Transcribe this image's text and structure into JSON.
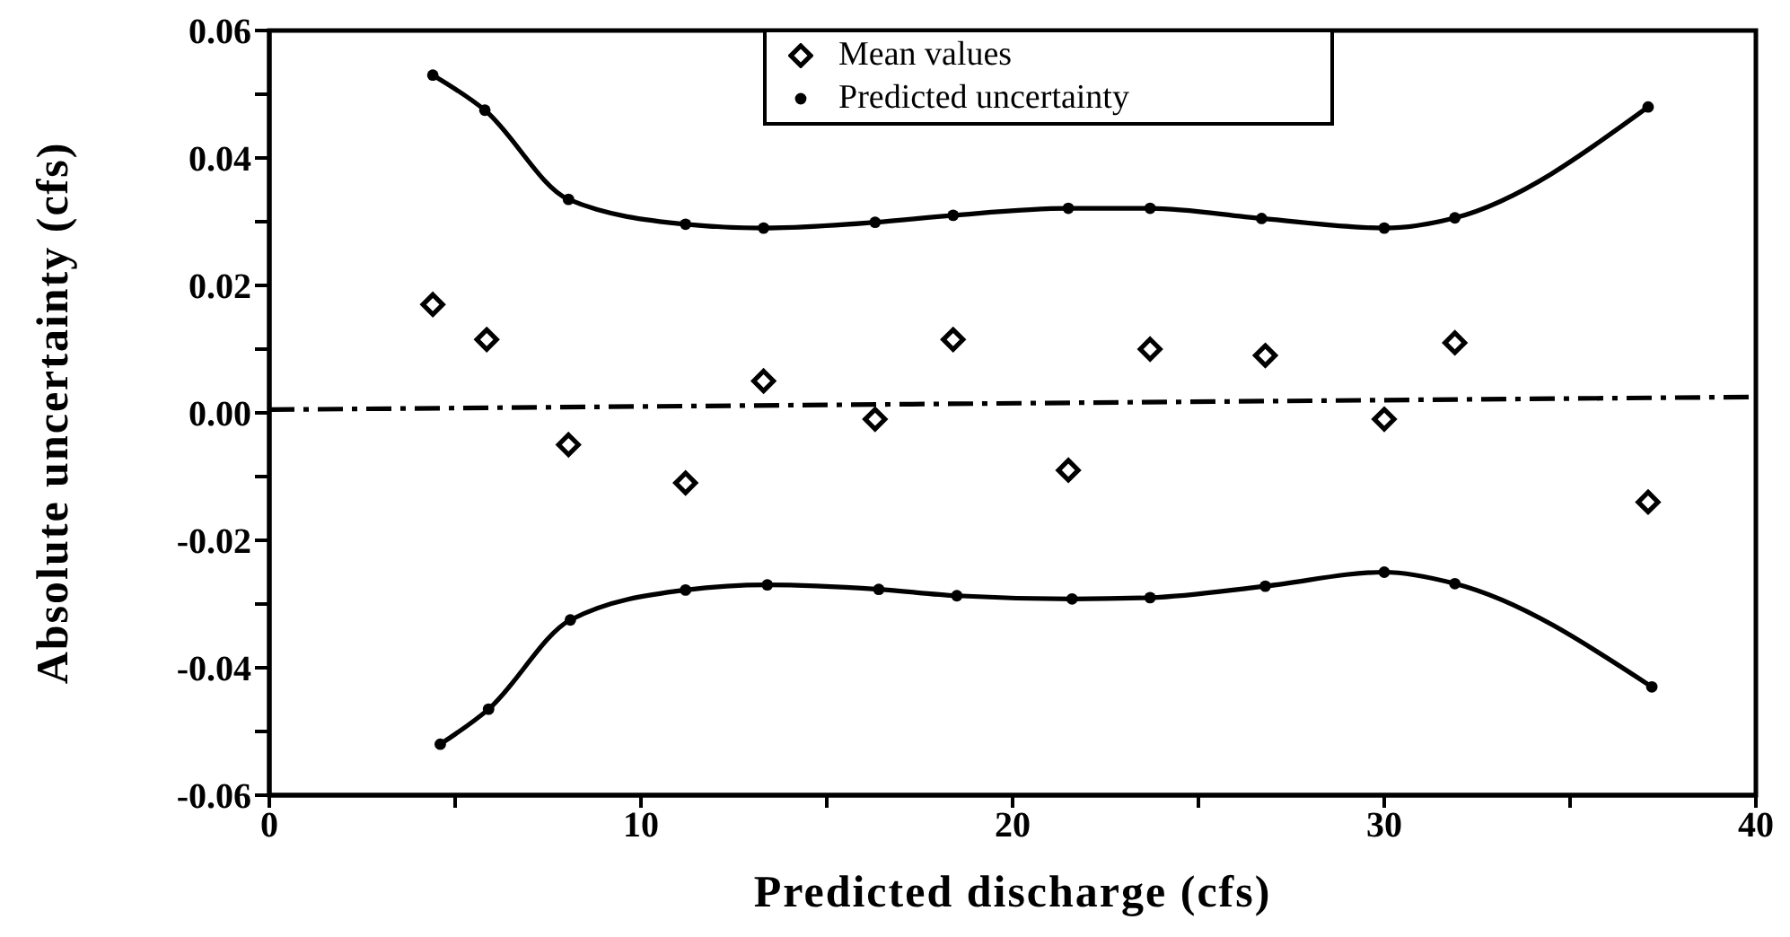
{
  "chart_data": {
    "type": "scatter",
    "xlabel": "Predicted discharge  (cfs)",
    "ylabel": "Absolute  uncertainty  (cfs)",
    "xlim": [
      0,
      40
    ],
    "xticks": [
      0,
      {
        "value": 5,
        "label": null
      },
      10,
      {
        "value": 15,
        "label": null
      },
      20,
      {
        "value": 25,
        "label": null
      },
      30,
      {
        "value": 35,
        "label": null
      },
      40
    ],
    "ylim": [
      -0.06,
      0.06
    ],
    "yticks": [
      -0.06,
      {
        "value": -0.05,
        "label": null
      },
      -0.04,
      {
        "value": -0.03,
        "label": null
      },
      -0.02,
      {
        "value": -0.01,
        "label": null
      },
      "0.00",
      {
        "value": 0.01,
        "label": null
      },
      0.02,
      {
        "value": 0.03,
        "label": null
      },
      0.04,
      {
        "value": 0.05,
        "label": null
      },
      0.06
    ],
    "legend": "top",
    "series": [
      {
        "name": "Mean values",
        "marker": "diamond",
        "color": "#000000",
        "x": [
          4.4,
          5.85,
          8.05,
          11.2,
          13.3,
          16.3,
          18.4,
          21.5,
          23.7,
          26.8,
          30.0,
          31.9,
          37.1
        ],
        "values": [
          0.017,
          0.0115,
          -0.005,
          -0.011,
          0.005,
          -0.001,
          0.0115,
          -0.009,
          0.01,
          0.009,
          -0.001,
          0.011,
          -0.014
        ]
      },
      {
        "name": "Predicted uncertainty",
        "type": "line",
        "marker": "circle",
        "color": "#000000",
        "x": [
          4.4,
          5.8,
          8.05,
          11.2,
          13.3,
          16.3,
          18.4,
          21.5,
          23.7,
          26.7,
          30.0,
          31.9,
          37.1
        ],
        "values": [
          0.053,
          0.0475,
          0.0335,
          0.0296,
          0.029,
          0.0299,
          0.031,
          0.0321,
          0.0321,
          0.0305,
          0.029,
          0.0306,
          0.048
        ]
      },
      {
        "type": "line",
        "marker": "circle",
        "color": "#000000",
        "x": [
          4.6,
          5.9,
          8.1,
          11.2,
          13.4,
          16.4,
          18.5,
          21.6,
          23.7,
          26.8,
          30.0,
          31.9,
          37.2
        ],
        "values": [
          -0.052,
          -0.0465,
          -0.0325,
          -0.0278,
          -0.027,
          -0.0277,
          -0.0287,
          -0.0292,
          -0.029,
          -0.0272,
          -0.025,
          -0.0268,
          -0.043
        ]
      },
      {
        "type": "line",
        "marker": "none",
        "line_style": "dashed",
        "color": "#000000",
        "x": [
          0,
          40
        ],
        "values": [
          0.0005,
          0.0025
        ]
      }
    ]
  }
}
